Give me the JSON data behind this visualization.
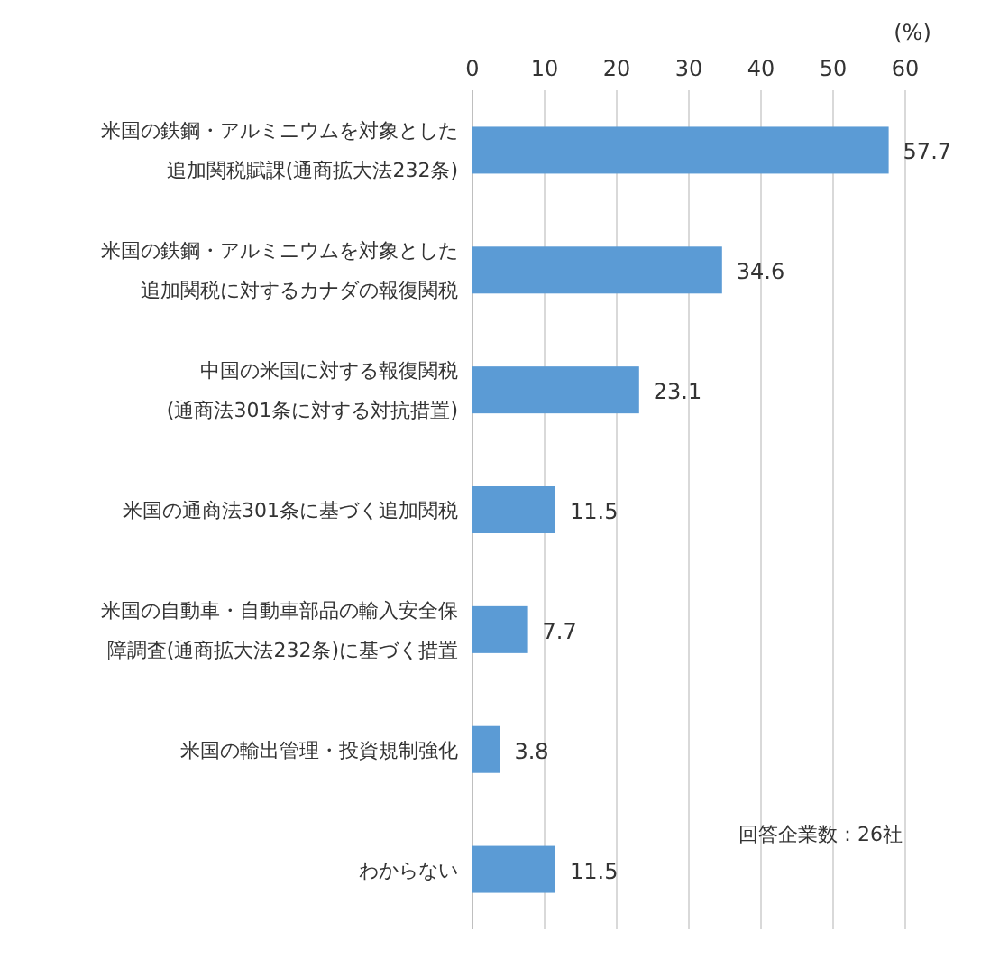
{
  "chart_data": {
    "type": "bar",
    "orientation": "horizontal",
    "categories": [
      "米国の鉄鋼・アルミニウムを対象とした追加関税賦課(通商拡大法232条)",
      "米国の鉄鋼・アルミニウムを対象とした追加関税に対するカナダの報復関税",
      "中国の米国に対する報復関税(通商法301条に対する対抗措置)",
      "米国の通商法301条に基づく追加関税",
      "米国の自動車・自動車部品の輸入安全保障調査(通商拡大法232条)に基づく措置",
      "米国の輸出管理・投資規制強化",
      "わからない"
    ],
    "values": [
      57.7,
      34.6,
      23.1,
      11.5,
      7.7,
      3.8,
      11.5
    ],
    "color": "#5b9bd5",
    "data_labels": true,
    "xlim": [
      0,
      60
    ],
    "xticks": [
      0,
      10,
      20,
      30,
      40,
      50,
      60
    ],
    "xlabel": "(%)",
    "grid": "x",
    "annotations": [
      "回答企業数：26社"
    ]
  }
}
